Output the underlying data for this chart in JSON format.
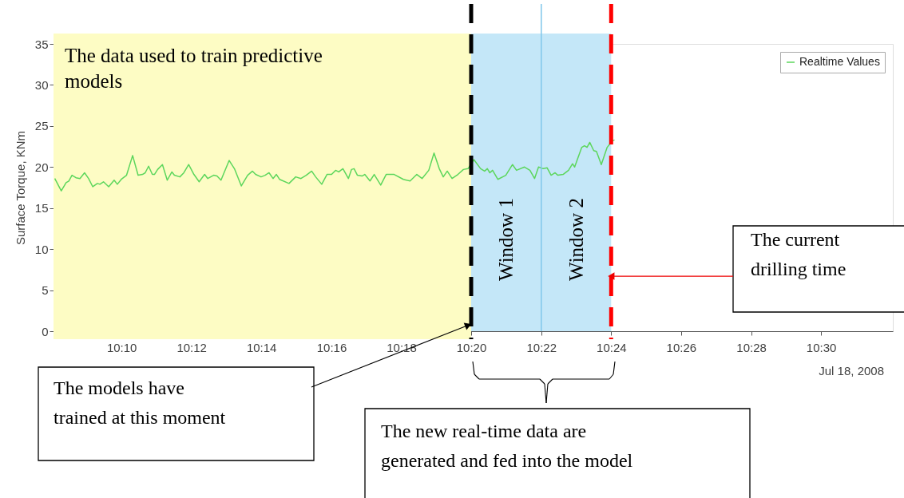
{
  "chart_data": {
    "type": "line",
    "ylabel": "Surface Torque, KNm",
    "xlim": [
      10.1343,
      10.5342
    ],
    "ylim": [
      0,
      35
    ],
    "xticks": [
      {
        "value": 10.1667,
        "label": "10:10"
      },
      {
        "value": 10.2,
        "label": "10:12"
      },
      {
        "value": 10.2333,
        "label": "10:14"
      },
      {
        "value": 10.2667,
        "label": "10:16"
      },
      {
        "value": 10.3,
        "label": "10:18"
      },
      {
        "value": 10.3333,
        "label": "10:20"
      },
      {
        "value": 10.3667,
        "label": "10:22"
      },
      {
        "value": 10.4,
        "label": "10:24"
      },
      {
        "value": 10.4333,
        "label": "10:26"
      },
      {
        "value": 10.4667,
        "label": "10:28"
      },
      {
        "value": 10.5,
        "label": "10:30"
      }
    ],
    "yticks": [
      0,
      5,
      10,
      15,
      20,
      25,
      30,
      35
    ],
    "grid": false,
    "legend": "top right",
    "series": [
      {
        "name": "Realtime Values",
        "color": "#5cd65c",
        "x": [
          10.1349,
          10.138,
          10.1403,
          10.1416,
          10.1431,
          10.145,
          10.1469,
          10.1491,
          10.151,
          10.153,
          10.1552,
          10.1564,
          10.1581,
          10.1606,
          10.1632,
          10.1647,
          10.1666,
          10.1691,
          10.172,
          10.1746,
          10.1767,
          10.178,
          10.1796,
          10.1814,
          10.1824,
          10.1839,
          10.1862,
          10.1885,
          10.1907,
          10.1919,
          10.1945,
          10.1964,
          10.1987,
          10.2012,
          10.2037,
          10.2063,
          10.2078,
          10.2106,
          10.2122,
          10.2141,
          10.218,
          10.2205,
          10.2238,
          10.2268,
          10.2291,
          10.2306,
          10.2332,
          10.2351,
          10.237,
          10.2389,
          10.2405,
          10.242,
          10.2465,
          10.2497,
          10.2522,
          10.2547,
          10.2573,
          10.2592,
          10.2621,
          10.2646,
          10.2668,
          10.2687,
          10.2702,
          10.2722,
          10.2748,
          10.2763,
          10.2775,
          10.2791,
          10.2813,
          10.2826,
          10.2851,
          10.2871,
          10.2902,
          10.2928,
          10.2966,
          10.301,
          10.3042,
          10.3074,
          10.3099,
          10.3131,
          10.3156,
          10.3181,
          10.32,
          10.3219,
          10.3242,
          10.327,
          10.3296,
          10.3318,
          10.3346,
          10.3378,
          10.3397,
          10.341,
          10.3422,
          10.3435,
          10.346,
          10.3498,
          10.353,
          10.3549,
          10.3587,
          10.3613,
          10.3635,
          10.3654,
          10.3676,
          10.3695,
          10.3714,
          10.3733,
          10.3746,
          10.3771,
          10.3797,
          10.3816,
          10.3826,
          10.386,
          10.3873,
          10.3885,
          10.3898,
          10.3917,
          10.393,
          10.3953,
          10.3981,
          10.4006,
          10.4016
        ],
        "values": [
          18.6,
          17.1,
          18.1,
          18.3,
          19.0,
          18.7,
          18.6,
          19.3,
          18.6,
          17.6,
          18.0,
          17.9,
          18.2,
          17.6,
          18.4,
          17.9,
          18.5,
          19.0,
          21.4,
          19.0,
          19.1,
          19.3,
          20.1,
          19.1,
          19.1,
          19.7,
          20.3,
          18.4,
          19.4,
          19.0,
          18.8,
          19.3,
          20.3,
          19.1,
          18.2,
          19.1,
          18.6,
          19.0,
          18.9,
          18.4,
          20.8,
          19.8,
          17.7,
          19.0,
          19.5,
          19.1,
          18.8,
          19.0,
          19.3,
          18.6,
          19.1,
          18.5,
          18.0,
          18.8,
          18.6,
          19.0,
          19.5,
          18.8,
          17.9,
          19.1,
          19.1,
          19.6,
          19.4,
          19.8,
          18.6,
          19.7,
          19.8,
          19.0,
          18.9,
          19.1,
          18.3,
          19.1,
          17.8,
          19.1,
          19.1,
          18.5,
          18.3,
          19.1,
          18.6,
          19.6,
          21.7,
          19.8,
          18.8,
          19.5,
          18.6,
          19.1,
          19.7,
          19.8,
          20.9,
          19.8,
          19.5,
          19.8,
          19.3,
          19.6,
          18.5,
          19.0,
          20.3,
          19.6,
          20.0,
          19.6,
          18.6,
          20.0,
          19.8,
          19.9,
          19.0,
          19.3,
          19.0,
          19.1,
          19.6,
          20.4,
          20.0,
          22.4,
          22.6,
          22.4,
          23.0,
          22.0,
          21.9,
          20.3,
          22.4,
          23.2,
          23.3
        ]
      }
    ],
    "bands": [
      {
        "axis": "x",
        "from": 10.1343,
        "to": 10.3333,
        "label": "The data used to train predictive models",
        "color": "#fdfcc4"
      },
      {
        "axis": "x",
        "from": 10.3333,
        "to": 10.3667,
        "label": "Window 1",
        "color": "#c4e7f8"
      },
      {
        "axis": "x",
        "from": 10.3667,
        "to": 10.4,
        "label": "Window 2",
        "color": "#c4e7f8"
      }
    ],
    "ref_lines": [
      {
        "axis": "x",
        "value": 10.3333,
        "color": "#000000",
        "line_style": "dashed"
      },
      {
        "axis": "x",
        "value": 10.3667,
        "color": "#7fc6ea",
        "line_style": "solid"
      },
      {
        "axis": "x",
        "value": 10.4,
        "color": "#ff0000",
        "line_style": "dashed"
      }
    ],
    "annotations": [
      "Jul 18, 2008",
      "The models have trained at this moment",
      "The new real-time data are generated and fed into the model",
      {
        "text": "The current drilling time",
        "x": 10.4,
        "y": 6.7
      }
    ]
  }
}
